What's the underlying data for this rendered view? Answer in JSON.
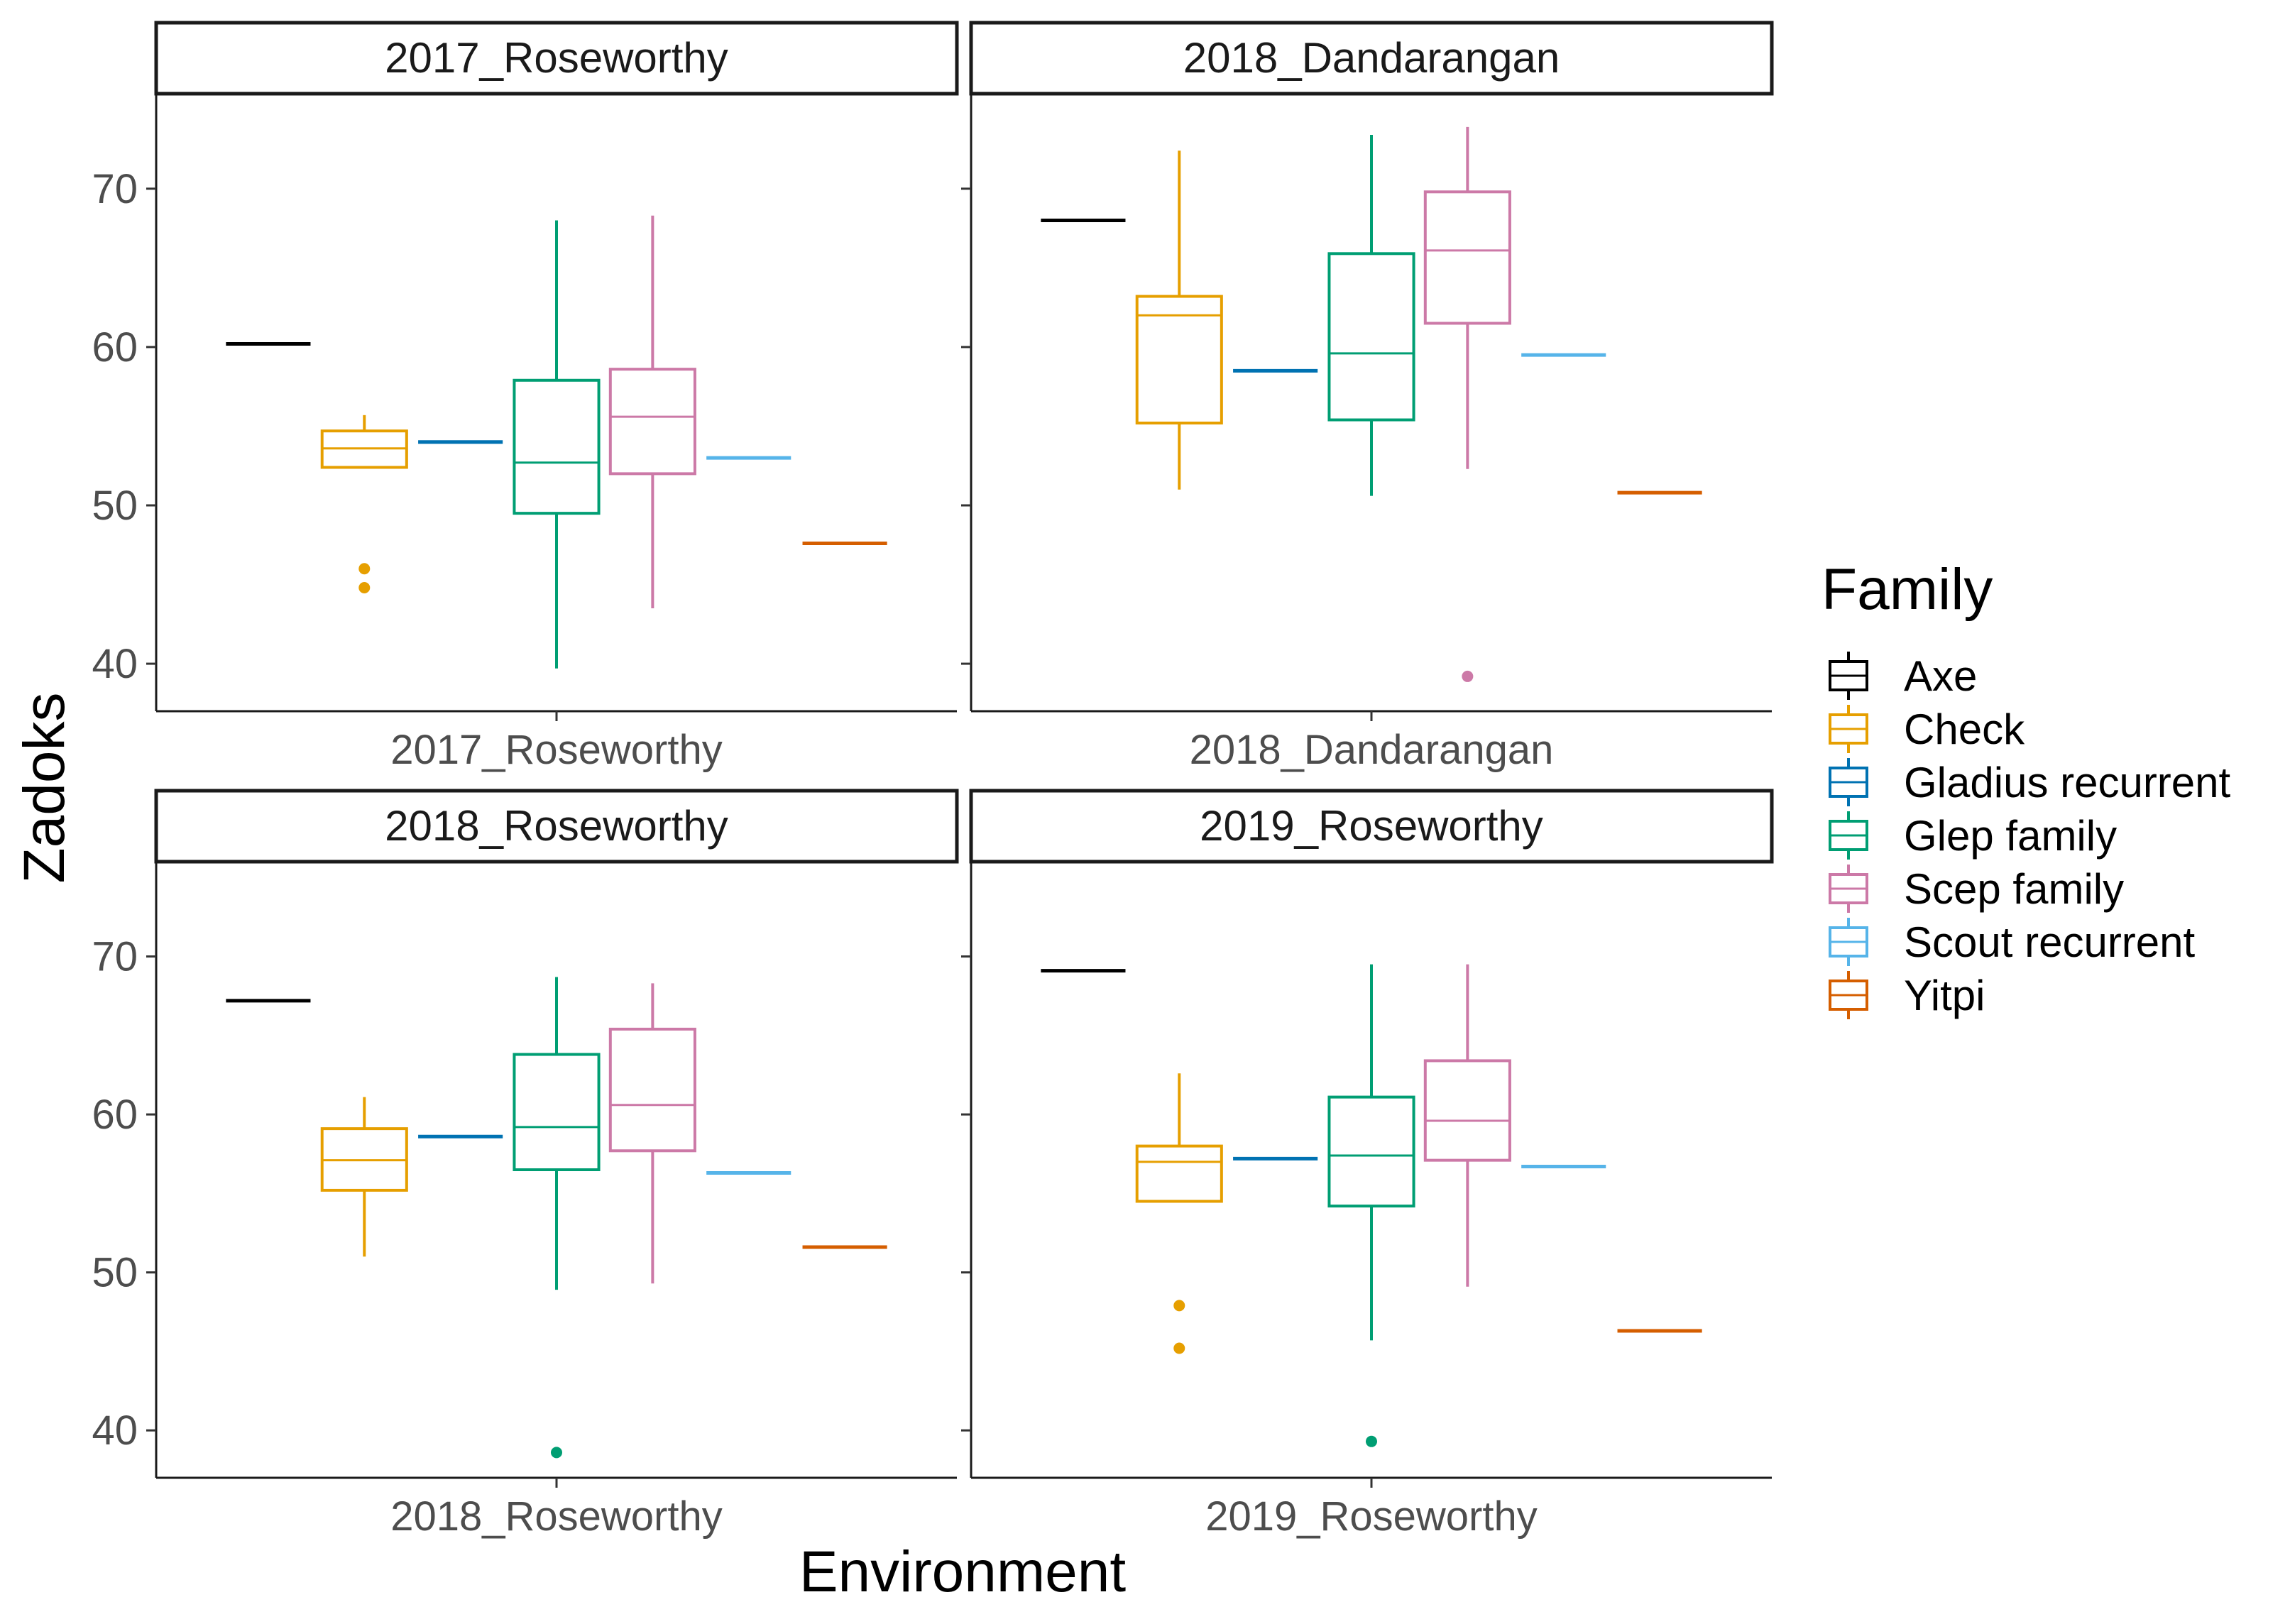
{
  "chart_data": {
    "type": "boxplot",
    "xlabel": "Environment",
    "ylabel": "Zadoks",
    "ylim": [
      37,
      76
    ],
    "yticks": [
      40,
      50,
      60,
      70
    ],
    "grid": false,
    "legend": {
      "title": "Family",
      "position": "right",
      "entries": [
        {
          "name": "Axe",
          "color": "#000000"
        },
        {
          "name": "Check",
          "color": "#E69F00"
        },
        {
          "name": "Gladius recurrent",
          "color": "#0072B2"
        },
        {
          "name": "Glep family",
          "color": "#009E73"
        },
        {
          "name": "Scep family",
          "color": "#CC79A7"
        },
        {
          "name": "Scout recurrent",
          "color": "#56B4E9"
        },
        {
          "name": "Yitpi",
          "color": "#D55E00"
        }
      ]
    },
    "facets": [
      {
        "strip": "2017_Roseworthy",
        "x_tick": "2017_Roseworthy",
        "boxes": [
          {
            "family": "Axe",
            "min": 60.2,
            "q1": 60.2,
            "median": 60.2,
            "q3": 60.2,
            "max": 60.2,
            "outliers": []
          },
          {
            "family": "Check",
            "min": 52.4,
            "q1": 52.4,
            "median": 53.6,
            "q3": 54.7,
            "max": 55.7,
            "outliers": [
              46.0,
              44.8
            ]
          },
          {
            "family": "Gladius recurrent",
            "min": 54.0,
            "q1": 54.0,
            "median": 54.0,
            "q3": 54.0,
            "max": 54.0,
            "outliers": []
          },
          {
            "family": "Glep family",
            "min": 39.7,
            "q1": 49.5,
            "median": 52.7,
            "q3": 57.9,
            "max": 68.0,
            "outliers": []
          },
          {
            "family": "Scep family",
            "min": 43.5,
            "q1": 52.0,
            "median": 55.6,
            "q3": 58.6,
            "max": 68.3,
            "outliers": []
          },
          {
            "family": "Scout recurrent",
            "min": 53.0,
            "q1": 53.0,
            "median": 53.0,
            "q3": 53.0,
            "max": 53.0,
            "outliers": []
          },
          {
            "family": "Yitpi",
            "min": 47.6,
            "q1": 47.6,
            "median": 47.6,
            "q3": 47.6,
            "max": 47.6,
            "outliers": []
          }
        ]
      },
      {
        "strip": "2018_Dandarangan",
        "x_tick": "2018_Dandarangan",
        "boxes": [
          {
            "family": "Axe",
            "min": 68.0,
            "q1": 68.0,
            "median": 68.0,
            "q3": 68.0,
            "max": 68.0,
            "outliers": []
          },
          {
            "family": "Check",
            "min": 51.0,
            "q1": 55.2,
            "median": 62.0,
            "q3": 63.2,
            "max": 72.4,
            "outliers": []
          },
          {
            "family": "Gladius recurrent",
            "min": 58.5,
            "q1": 58.5,
            "median": 58.5,
            "q3": 58.5,
            "max": 58.5,
            "outliers": []
          },
          {
            "family": "Glep family",
            "min": 50.6,
            "q1": 55.4,
            "median": 59.6,
            "q3": 65.9,
            "max": 73.4,
            "outliers": []
          },
          {
            "family": "Scep family",
            "min": 52.3,
            "q1": 61.5,
            "median": 66.1,
            "q3": 69.8,
            "max": 73.9,
            "outliers": [
              39.2
            ]
          },
          {
            "family": "Scout recurrent",
            "min": 59.5,
            "q1": 59.5,
            "median": 59.5,
            "q3": 59.5,
            "max": 59.5,
            "outliers": []
          },
          {
            "family": "Yitpi",
            "min": 50.8,
            "q1": 50.8,
            "median": 50.8,
            "q3": 50.8,
            "max": 50.8,
            "outliers": []
          }
        ]
      },
      {
        "strip": "2018_Roseworthy",
        "x_tick": "2018_Roseworthy",
        "boxes": [
          {
            "family": "Axe",
            "min": 67.2,
            "q1": 67.2,
            "median": 67.2,
            "q3": 67.2,
            "max": 67.2,
            "outliers": []
          },
          {
            "family": "Check",
            "min": 51.0,
            "q1": 55.2,
            "median": 57.1,
            "q3": 59.1,
            "max": 61.1,
            "outliers": []
          },
          {
            "family": "Gladius recurrent",
            "min": 58.6,
            "q1": 58.6,
            "median": 58.6,
            "q3": 58.6,
            "max": 58.6,
            "outliers": []
          },
          {
            "family": "Glep family",
            "min": 48.9,
            "q1": 56.5,
            "median": 59.2,
            "q3": 63.8,
            "max": 68.7,
            "outliers": [
              38.6
            ]
          },
          {
            "family": "Scep family",
            "min": 49.3,
            "q1": 57.7,
            "median": 60.6,
            "q3": 65.4,
            "max": 68.3,
            "outliers": []
          },
          {
            "family": "Scout recurrent",
            "min": 56.3,
            "q1": 56.3,
            "median": 56.3,
            "q3": 56.3,
            "max": 56.3,
            "outliers": []
          },
          {
            "family": "Yitpi",
            "min": 51.6,
            "q1": 51.6,
            "median": 51.6,
            "q3": 51.6,
            "max": 51.6,
            "outliers": []
          }
        ]
      },
      {
        "strip": "2019_Roseworthy",
        "x_tick": "2019_Roseworthy",
        "boxes": [
          {
            "family": "Axe",
            "min": 69.1,
            "q1": 69.1,
            "median": 69.1,
            "q3": 69.1,
            "max": 69.1,
            "outliers": []
          },
          {
            "family": "Check",
            "min": 54.5,
            "q1": 54.5,
            "median": 57.0,
            "q3": 58.0,
            "max": 62.6,
            "outliers": [
              47.9,
              45.2
            ]
          },
          {
            "family": "Gladius recurrent",
            "min": 57.2,
            "q1": 57.2,
            "median": 57.2,
            "q3": 57.2,
            "max": 57.2,
            "outliers": []
          },
          {
            "family": "Glep family",
            "min": 45.7,
            "q1": 54.2,
            "median": 57.4,
            "q3": 61.1,
            "max": 69.5,
            "outliers": [
              39.3
            ]
          },
          {
            "family": "Scep family",
            "min": 49.1,
            "q1": 57.1,
            "median": 59.6,
            "q3": 63.4,
            "max": 69.5,
            "outliers": []
          },
          {
            "family": "Scout recurrent",
            "min": 56.7,
            "q1": 56.7,
            "median": 56.7,
            "q3": 56.7,
            "max": 56.7,
            "outliers": []
          },
          {
            "family": "Yitpi",
            "min": 46.3,
            "q1": 46.3,
            "median": 46.3,
            "q3": 46.3,
            "max": 46.3,
            "outliers": []
          }
        ]
      }
    ]
  }
}
